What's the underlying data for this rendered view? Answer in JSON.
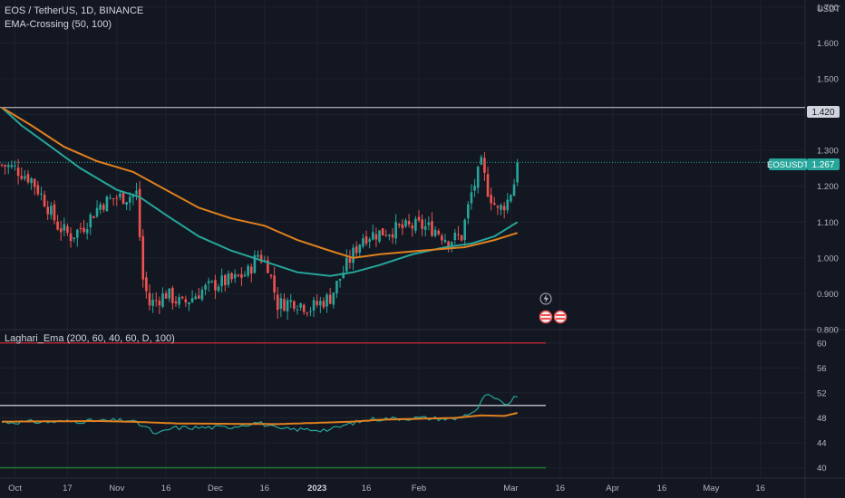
{
  "header": {
    "symbol_line": "EOS / TetherUS, 1D, BINANCE",
    "indicator_label": "EMA-Crossing (50, 100)"
  },
  "oscillator": {
    "label": "Laghari_Ema (200, 60, 40, 60, D, 100)",
    "levels": [
      60,
      40,
      50
    ],
    "level_colors": {
      "upper": "#b22833",
      "lower": "#1f7a2e",
      "mid": "#b2b5be"
    }
  },
  "price_scale": {
    "currency": "USDT",
    "ticks": [
      "1.700",
      "1.600",
      "1.500",
      "1.300",
      "1.200",
      "1.100",
      "1.000",
      "0.900",
      "0.800"
    ],
    "horizontal_line_label": "1.420",
    "symbol_badge": "EOSUSDT",
    "last_price_label": "1.267"
  },
  "osc_scale": {
    "ticks": [
      "60",
      "56",
      "52",
      "48",
      "44",
      "40"
    ]
  },
  "time_axis": {
    "labels": [
      "Oct",
      "17",
      "Nov",
      "16",
      "Dec",
      "16",
      "2023",
      "16",
      "Feb",
      "Mar",
      "16",
      "Apr",
      "16",
      "May",
      "16"
    ],
    "bold": "2023"
  },
  "colors": {
    "background": "#131722",
    "up": "#26a69a",
    "down": "#ef5350",
    "ema_fast": "#26a69a",
    "ema_slow": "#e0801e",
    "horizontal_line": "#d1d4dc",
    "grid": "#1e222d"
  },
  "chart_data": [
    {
      "type": "candlestick",
      "title": "EOS / TetherUS, 1D, BINANCE",
      "ylim": [
        0.8,
        1.72
      ],
      "x_range": [
        "2022-09-27",
        "2023-05-24"
      ],
      "horizontal_level": 1.42,
      "last_price": 1.267,
      "candle_anchors": [
        [
          "2022-09-27",
          1.26
        ],
        [
          "2022-10-01",
          1.25
        ],
        [
          "2022-10-06",
          1.22
        ],
        [
          "2022-10-10",
          1.16
        ],
        [
          "2022-10-14",
          1.09
        ],
        [
          "2022-10-18",
          1.06
        ],
        [
          "2022-10-22",
          1.09
        ],
        [
          "2022-10-27",
          1.15
        ],
        [
          "2022-11-01",
          1.17
        ],
        [
          "2022-11-04",
          1.17
        ],
        [
          "2022-11-07",
          1.18
        ],
        [
          "2022-11-09",
          0.94
        ],
        [
          "2022-11-11",
          0.87
        ],
        [
          "2022-11-16",
          0.9
        ],
        [
          "2022-11-21",
          0.87
        ],
        [
          "2022-11-27",
          0.91
        ],
        [
          "2022-12-02",
          0.93
        ],
        [
          "2022-12-07",
          0.94
        ],
        [
          "2022-12-11",
          0.96
        ],
        [
          "2022-12-14",
          1.01
        ],
        [
          "2022-12-17",
          0.98
        ],
        [
          "2022-12-20",
          0.87
        ],
        [
          "2022-12-25",
          0.88
        ],
        [
          "2022-12-30",
          0.86
        ],
        [
          "2023-01-05",
          0.89
        ],
        [
          "2023-01-10",
          0.98
        ],
        [
          "2023-01-15",
          1.06
        ],
        [
          "2023-01-20",
          1.07
        ],
        [
          "2023-01-25",
          1.08
        ],
        [
          "2023-02-01",
          1.09
        ],
        [
          "2023-02-06",
          1.08
        ],
        [
          "2023-02-10",
          1.05
        ],
        [
          "2023-02-14",
          1.06
        ],
        [
          "2023-02-17",
          1.18
        ],
        [
          "2023-02-20",
          1.26
        ],
        [
          "2023-02-22",
          1.19
        ],
        [
          "2023-02-25",
          1.13
        ],
        [
          "2023-02-28",
          1.16
        ],
        [
          "2023-03-02",
          1.21
        ],
        [
          "2023-03-03",
          1.267
        ]
      ],
      "series": [
        {
          "name": "EMA 50",
          "color": "#26a69a",
          "points": [
            [
              "2022-09-27",
              1.42
            ],
            [
              "2022-10-03",
              1.37
            ],
            [
              "2022-10-12",
              1.31
            ],
            [
              "2022-10-21",
              1.25
            ],
            [
              "2022-11-01",
              1.19
            ],
            [
              "2022-11-08",
              1.17
            ],
            [
              "2022-11-16",
              1.12
            ],
            [
              "2022-11-26",
              1.06
            ],
            [
              "2022-12-06",
              1.02
            ],
            [
              "2022-12-16",
              0.99
            ],
            [
              "2022-12-26",
              0.96
            ],
            [
              "2023-01-05",
              0.95
            ],
            [
              "2023-01-12",
              0.96
            ],
            [
              "2023-01-20",
              0.98
            ],
            [
              "2023-01-30",
              1.01
            ],
            [
              "2023-02-09",
              1.03
            ],
            [
              "2023-02-17",
              1.04
            ],
            [
              "2023-02-24",
              1.06
            ],
            [
              "2023-03-03",
              1.1
            ]
          ]
        },
        {
          "name": "EMA 100",
          "color": "#e0801e",
          "points": [
            [
              "2022-09-27",
              1.42
            ],
            [
              "2022-10-06",
              1.37
            ],
            [
              "2022-10-16",
              1.31
            ],
            [
              "2022-10-26",
              1.27
            ],
            [
              "2022-11-06",
              1.24
            ],
            [
              "2022-11-16",
              1.19
            ],
            [
              "2022-11-26",
              1.14
            ],
            [
              "2022-12-06",
              1.11
            ],
            [
              "2022-12-16",
              1.09
            ],
            [
              "2022-12-26",
              1.05
            ],
            [
              "2023-01-05",
              1.02
            ],
            [
              "2023-01-12",
              1.0
            ],
            [
              "2023-01-20",
              1.01
            ],
            [
              "2023-02-01",
              1.02
            ],
            [
              "2023-02-15",
              1.03
            ],
            [
              "2023-02-24",
              1.05
            ],
            [
              "2023-03-03",
              1.07
            ]
          ]
        }
      ]
    },
    {
      "type": "line",
      "title": "Laghari_Ema (200, 60, 40, 60, D, 100)",
      "ylim": [
        38.5,
        62
      ],
      "series": [
        {
          "name": "",
          "color": "#26a69a",
          "points": [
            [
              "2022-09-27",
              47.3
            ],
            [
              "2022-10-15",
              47.4
            ],
            [
              "2022-11-05",
              47.6
            ],
            [
              "2022-11-10",
              46.5
            ],
            [
              "2022-11-13",
              45.3
            ],
            [
              "2022-11-18",
              46.4
            ],
            [
              "2022-12-05",
              46.5
            ],
            [
              "2022-12-14",
              47.3
            ],
            [
              "2022-12-20",
              46.2
            ],
            [
              "2023-01-05",
              46.1
            ],
            [
              "2023-01-12",
              47.2
            ],
            [
              "2023-01-18",
              47.8
            ],
            [
              "2023-02-01",
              48.0
            ],
            [
              "2023-02-12",
              47.8
            ],
            [
              "2023-02-19",
              49.3
            ],
            [
              "2023-02-21",
              51.7
            ],
            [
              "2023-02-24",
              51.1
            ],
            [
              "2023-02-27",
              50.1
            ],
            [
              "2023-03-01",
              50.6
            ],
            [
              "2023-03-03",
              51.6
            ]
          ]
        },
        {
          "name": "",
          "color": "#e0801e",
          "points": [
            [
              "2022-09-27",
              47.4
            ],
            [
              "2022-10-27",
              47.5
            ],
            [
              "2022-11-10",
              47.3
            ],
            [
              "2022-11-20",
              47.1
            ],
            [
              "2022-12-20",
              47.0
            ],
            [
              "2023-01-12",
              47.4
            ],
            [
              "2023-01-20",
              47.7
            ],
            [
              "2023-02-12",
              48.0
            ],
            [
              "2023-02-20",
              48.4
            ],
            [
              "2023-02-27",
              48.3
            ],
            [
              "2023-03-03",
              48.8
            ]
          ]
        }
      ]
    }
  ]
}
